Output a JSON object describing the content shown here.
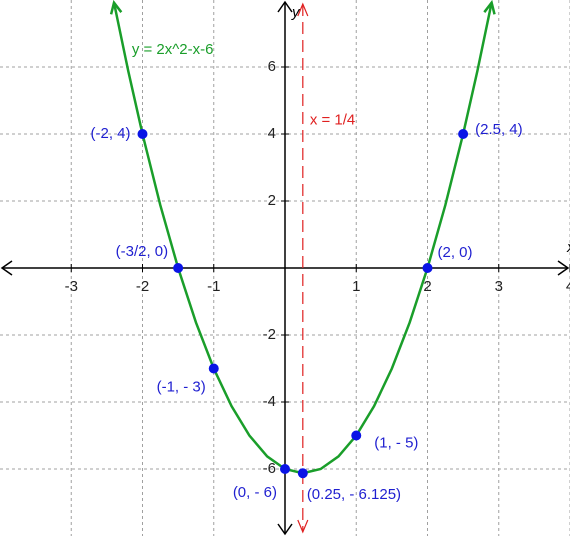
{
  "chart_data": {
    "type": "line",
    "xlim": [
      -4,
      4
    ],
    "ylim": [
      -8,
      8
    ],
    "xticks": [
      -3,
      -2,
      -1,
      1,
      2,
      3,
      4
    ],
    "yticks": [
      -6,
      -4,
      -2,
      2,
      4,
      6
    ],
    "xlabel": "x",
    "ylabel": "y",
    "grid": true,
    "series": [
      {
        "name": "y = 2x^2-x-6",
        "type": "line",
        "color": "#1a9e2a",
        "x": [
          -2.4,
          -2.2,
          -2,
          -1.75,
          -1.5,
          -1.25,
          -1,
          -0.75,
          -0.5,
          -0.25,
          0,
          0.25,
          0.5,
          0.75,
          1,
          1.25,
          1.5,
          1.75,
          2,
          2.25,
          2.5,
          2.7,
          2.9
        ],
        "values": [
          7.92,
          5.88,
          4,
          1.875,
          0,
          -1.625,
          -3,
          -4.125,
          -5,
          -5.625,
          -6,
          -6.125,
          -6,
          -5.625,
          -5,
          -4.125,
          -3,
          -1.625,
          0,
          1.875,
          4,
          5.88,
          7.92
        ]
      },
      {
        "type": "scatter",
        "color": "#0a14e6",
        "x": [
          -2,
          -1.5,
          -1,
          0,
          0.25,
          1,
          2,
          2.5
        ],
        "values": [
          4,
          0,
          -3,
          -6,
          -6.125,
          -5,
          0,
          4
        ],
        "labels": [
          "(-2, 4)",
          "(-3/2, 0)",
          "(-1, - 3)",
          "(0, - 6)",
          "(0.25, - 6.125)",
          "(1, - 5)",
          "(2, 0)",
          "(2.5, 4)"
        ]
      }
    ],
    "vline": {
      "x": 0.25,
      "label": "x = 1/4",
      "color": "#e02020"
    }
  }
}
